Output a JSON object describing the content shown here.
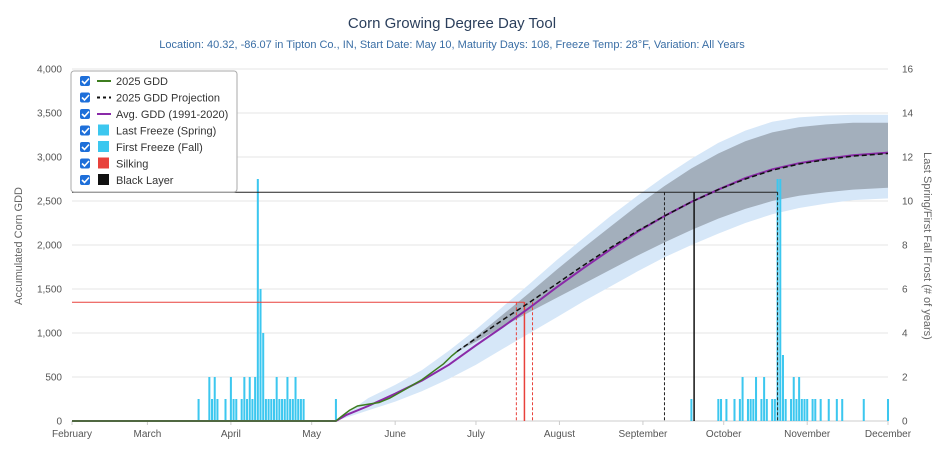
{
  "chart_data": {
    "type": "line",
    "title": "Corn Growing Degree Day Tool",
    "subtitle": "Location: 40.32, -86.07 in Tipton Co., IN, Start Date: May 10, Maturity Days: 108, Freeze Temp: 28°F, Variation: All Years",
    "ylabel": "Accumulated Corn GDD",
    "y2label": "Last Spring/First Fall Frost (# of years)",
    "ylim": [
      0,
      4000
    ],
    "y2lim": [
      0,
      16
    ],
    "yticks": [
      0,
      500,
      1000,
      1500,
      2000,
      2500,
      3000,
      3500,
      4000
    ],
    "ytick_labels": [
      "0",
      "500",
      "1,000",
      "1,500",
      "2,000",
      "2,500",
      "3,000",
      "3,500",
      "4,000"
    ],
    "y2ticks": [
      0,
      2,
      4,
      6,
      8,
      10,
      12,
      14,
      16
    ],
    "y2tick_labels": [
      "0",
      "2",
      "4",
      "6",
      "8",
      "10",
      "12",
      "14",
      "16"
    ],
    "x_months": [
      "February",
      "March",
      "April",
      "May",
      "June",
      "July",
      "August",
      "September",
      "October",
      "November",
      "December"
    ],
    "x_month_days": [
      0,
      28,
      59,
      89,
      120,
      150,
      181,
      212,
      242,
      273,
      303
    ],
    "x_min_day": 0,
    "x_max_day": 303,
    "legend_position": "top-left",
    "legend": [
      {
        "label": "2025 GDD",
        "color": "#3d7d1f",
        "kind": "line"
      },
      {
        "label": "2025 GDD Projection",
        "color": "#111111",
        "kind": "dash"
      },
      {
        "label": "Avg. GDD (1991-2020)",
        "color": "#8a2aa8",
        "kind": "line"
      },
      {
        "label": "Last Freeze (Spring)",
        "color": "#3cc7ef",
        "kind": "box"
      },
      {
        "label": "First Freeze (Fall)",
        "color": "#3cc7ef",
        "kind": "box"
      },
      {
        "label": "Silking",
        "color": "#e8413b",
        "kind": "box"
      },
      {
        "label": "Black Layer",
        "color": "#111111",
        "kind": "box"
      }
    ],
    "gdd_2025": [
      [
        0,
        0
      ],
      [
        98,
        0
      ],
      [
        100,
        50
      ],
      [
        103,
        120
      ],
      [
        106,
        170
      ],
      [
        110,
        190
      ],
      [
        114,
        210
      ],
      [
        118,
        260
      ],
      [
        122,
        330
      ],
      [
        126,
        400
      ],
      [
        130,
        470
      ],
      [
        134,
        560
      ],
      [
        138,
        650
      ],
      [
        141,
        740
      ],
      [
        143,
        790
      ]
    ],
    "gdd_projection": [
      [
        143,
        790
      ],
      [
        150,
        940
      ],
      [
        160,
        1150
      ],
      [
        170,
        1350
      ],
      [
        180,
        1560
      ],
      [
        190,
        1770
      ],
      [
        200,
        1970
      ],
      [
        210,
        2160
      ],
      [
        220,
        2330
      ],
      [
        230,
        2490
      ],
      [
        240,
        2630
      ],
      [
        250,
        2750
      ],
      [
        260,
        2850
      ],
      [
        270,
        2920
      ],
      [
        280,
        2970
      ],
      [
        290,
        3010
      ],
      [
        303,
        3040
      ]
    ],
    "avg_gdd": [
      [
        0,
        0
      ],
      [
        98,
        0
      ],
      [
        102,
        70
      ],
      [
        110,
        170
      ],
      [
        120,
        310
      ],
      [
        130,
        460
      ],
      [
        140,
        640
      ],
      [
        150,
        860
      ],
      [
        160,
        1070
      ],
      [
        170,
        1290
      ],
      [
        180,
        1520
      ],
      [
        190,
        1740
      ],
      [
        200,
        1950
      ],
      [
        210,
        2150
      ],
      [
        220,
        2330
      ],
      [
        230,
        2490
      ],
      [
        240,
        2630
      ],
      [
        250,
        2760
      ],
      [
        260,
        2860
      ],
      [
        270,
        2930
      ],
      [
        280,
        2980
      ],
      [
        290,
        3020
      ],
      [
        303,
        3050
      ]
    ],
    "band_inner": [
      [
        143,
        790,
        790
      ],
      [
        150,
        900,
        960
      ],
      [
        160,
        1070,
        1210
      ],
      [
        170,
        1240,
        1460
      ],
      [
        180,
        1400,
        1720
      ],
      [
        190,
        1560,
        1970
      ],
      [
        200,
        1720,
        2210
      ],
      [
        210,
        1880,
        2450
      ],
      [
        220,
        2030,
        2670
      ],
      [
        230,
        2170,
        2870
      ],
      [
        240,
        2300,
        3040
      ],
      [
        250,
        2410,
        3180
      ],
      [
        260,
        2500,
        3280
      ],
      [
        270,
        2560,
        3340
      ],
      [
        280,
        2600,
        3370
      ],
      [
        290,
        2630,
        3390
      ],
      [
        303,
        2650,
        3390
      ]
    ],
    "band_outer": [
      [
        98,
        0,
        0
      ],
      [
        110,
        120,
        260
      ],
      [
        120,
        220,
        410
      ],
      [
        130,
        340,
        580
      ],
      [
        140,
        480,
        800
      ],
      [
        150,
        640,
        1040
      ],
      [
        160,
        820,
        1300
      ],
      [
        170,
        1000,
        1560
      ],
      [
        180,
        1180,
        1830
      ],
      [
        190,
        1360,
        2080
      ],
      [
        200,
        1530,
        2330
      ],
      [
        210,
        1700,
        2560
      ],
      [
        220,
        1860,
        2780
      ],
      [
        230,
        2000,
        2980
      ],
      [
        240,
        2130,
        3160
      ],
      [
        250,
        2250,
        3300
      ],
      [
        260,
        2350,
        3400
      ],
      [
        270,
        2420,
        3450
      ],
      [
        280,
        2470,
        3470
      ],
      [
        290,
        2510,
        3480
      ],
      [
        303,
        2530,
        3480
      ]
    ],
    "spring_freeze_bars": [
      [
        47,
        1
      ],
      [
        51,
        2
      ],
      [
        52,
        1
      ],
      [
        53,
        2
      ],
      [
        54,
        1
      ],
      [
        57,
        1
      ],
      [
        59,
        2
      ],
      [
        60,
        1
      ],
      [
        61,
        1
      ],
      [
        63,
        1
      ],
      [
        64,
        2
      ],
      [
        65,
        1
      ],
      [
        66,
        2
      ],
      [
        67,
        1
      ],
      [
        68,
        2
      ],
      [
        69,
        11
      ],
      [
        70,
        6
      ],
      [
        71,
        4
      ],
      [
        72,
        1
      ],
      [
        73,
        1
      ],
      [
        74,
        1
      ],
      [
        75,
        1
      ],
      [
        76,
        2
      ],
      [
        77,
        1
      ],
      [
        78,
        1
      ],
      [
        79,
        1
      ],
      [
        80,
        2
      ],
      [
        81,
        1
      ],
      [
        82,
        1
      ],
      [
        83,
        2
      ],
      [
        84,
        1
      ],
      [
        85,
        1
      ],
      [
        86,
        1
      ],
      [
        98,
        1
      ]
    ],
    "fall_freeze_bars": [
      [
        230,
        1
      ],
      [
        240,
        1
      ],
      [
        241,
        1
      ],
      [
        243,
        1
      ],
      [
        246,
        1
      ],
      [
        248,
        1
      ],
      [
        249,
        2
      ],
      [
        251,
        1
      ],
      [
        252,
        1
      ],
      [
        253,
        1
      ],
      [
        254,
        2
      ],
      [
        256,
        1
      ],
      [
        257,
        2
      ],
      [
        258,
        1
      ],
      [
        260,
        1
      ],
      [
        261,
        1
      ],
      [
        262,
        11
      ],
      [
        263,
        11
      ],
      [
        264,
        3
      ],
      [
        265,
        1
      ],
      [
        267,
        1
      ],
      [
        268,
        2
      ],
      [
        269,
        1
      ],
      [
        270,
        2
      ],
      [
        271,
        1
      ],
      [
        272,
        1
      ],
      [
        273,
        1
      ],
      [
        275,
        1
      ],
      [
        276,
        1
      ],
      [
        278,
        1
      ],
      [
        281,
        1
      ],
      [
        284,
        1
      ],
      [
        286,
        1
      ],
      [
        294,
        1
      ],
      [
        303,
        1
      ]
    ],
    "silking": {
      "gdd": 1350,
      "day": 168,
      "range": [
        165,
        171
      ]
    },
    "black_layer": {
      "gdd": 2600,
      "day": 231,
      "range": [
        220,
        262
      ]
    }
  }
}
